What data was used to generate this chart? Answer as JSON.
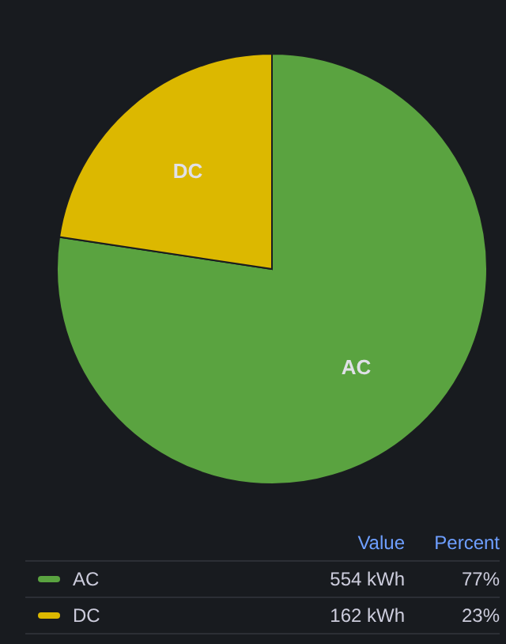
{
  "chart_data": {
    "type": "pie",
    "categories": [
      "AC",
      "DC"
    ],
    "values": [
      554,
      162
    ],
    "colors": [
      "#5aa340",
      "#dcb800"
    ],
    "value_labels": [
      "554 kWh",
      "162 kWh"
    ],
    "annotations": [
      "Value",
      "Percent",
      "77%",
      "23%"
    ],
    "legend": "bottom"
  }
}
